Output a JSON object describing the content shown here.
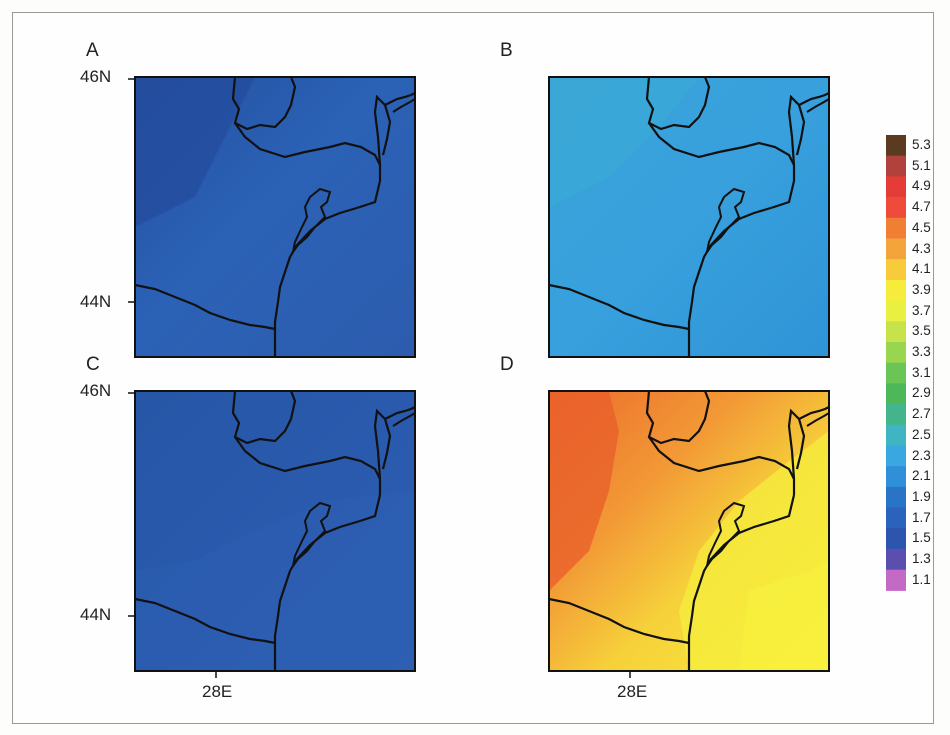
{
  "panels": [
    {
      "label": "A",
      "scheme": "blue_dark"
    },
    {
      "label": "B",
      "scheme": "blue_light"
    },
    {
      "label": "C",
      "scheme": "blue_dark2"
    },
    {
      "label": "D",
      "scheme": "orange_yellow"
    }
  ],
  "axes": {
    "lat_top": "46N",
    "lat_bottom": "44N",
    "lon": "28E"
  },
  "colorbar": {
    "labels": [
      "5.3",
      "5.1",
      "4.9",
      "4.7",
      "4.5",
      "4.3",
      "4.1",
      "3.9",
      "3.7",
      "3.5",
      "3.3",
      "3.1",
      "2.9",
      "2.7",
      "2.5",
      "2.3",
      "2.1",
      "1.9",
      "1.7",
      "1.5",
      "1.3",
      "1.1"
    ],
    "colors": [
      "#5a3b22",
      "#b0413d",
      "#e53c3a",
      "#ef4b3a",
      "#f07f34",
      "#f3a43a",
      "#f8cb3a",
      "#f6ec3b",
      "#eaf03f",
      "#c8e34a",
      "#9ad550",
      "#6bc556",
      "#4cb85a",
      "#43b58c",
      "#3fb5c4",
      "#39a8e0",
      "#2f8fd8",
      "#2a74c8",
      "#2b62bb",
      "#2d55ad",
      "#5b4fae",
      "#c46ac4"
    ]
  }
}
